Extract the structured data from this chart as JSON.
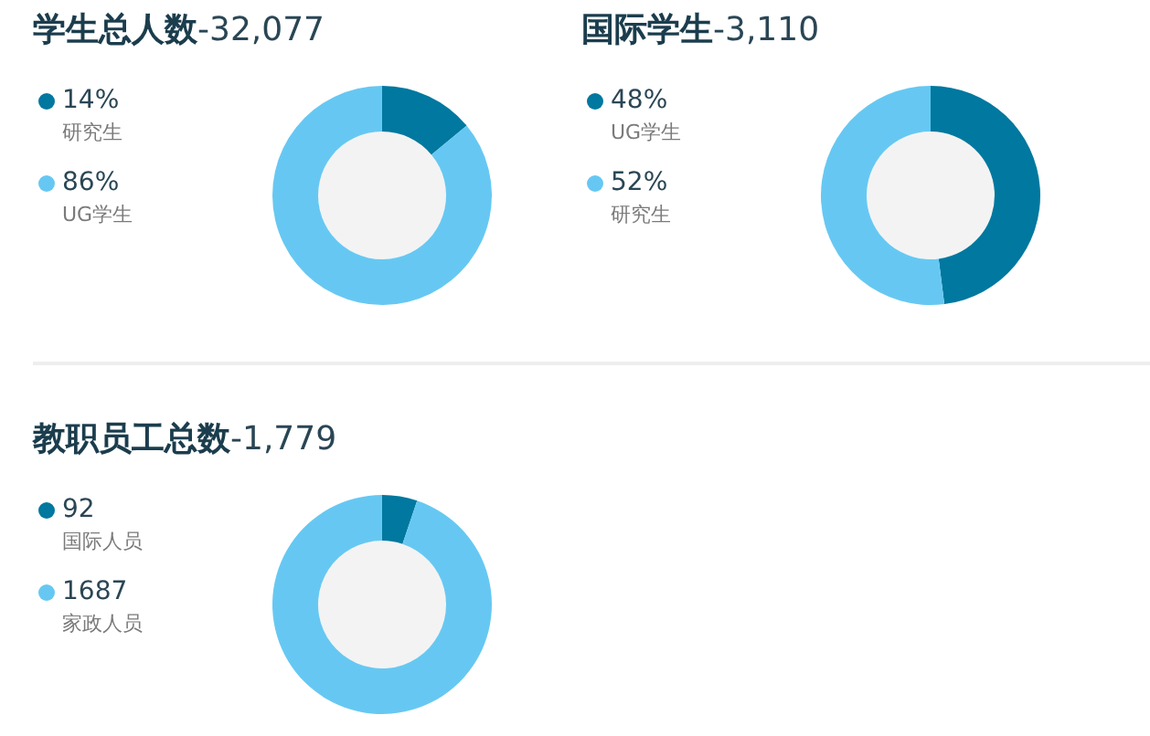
{
  "chart_data": [
    {
      "type": "donut",
      "title": "学生总人数-32,077",
      "categories": [
        "研究生",
        "UG学生"
      ],
      "values": [
        14,
        86
      ],
      "colors": [
        "#00789f",
        "#66c8f2"
      ],
      "value_labels": [
        "14%",
        "86%"
      ],
      "legend": "left"
    },
    {
      "type": "donut",
      "title": "国际学生-3,110",
      "categories": [
        "UG学生",
        "研究生"
      ],
      "values": [
        48,
        52
      ],
      "colors": [
        "#00789f",
        "#66c8f2"
      ],
      "value_labels": [
        "48%",
        "52%"
      ],
      "legend": "left"
    },
    {
      "type": "donut",
      "title": "教职员工总数-1,779",
      "categories": [
        "国际人员",
        "家政人员"
      ],
      "values": [
        92,
        1687
      ],
      "colors": [
        "#00789f",
        "#66c8f2"
      ],
      "value_labels": [
        "92",
        "1687"
      ],
      "legend": "left"
    }
  ]
}
